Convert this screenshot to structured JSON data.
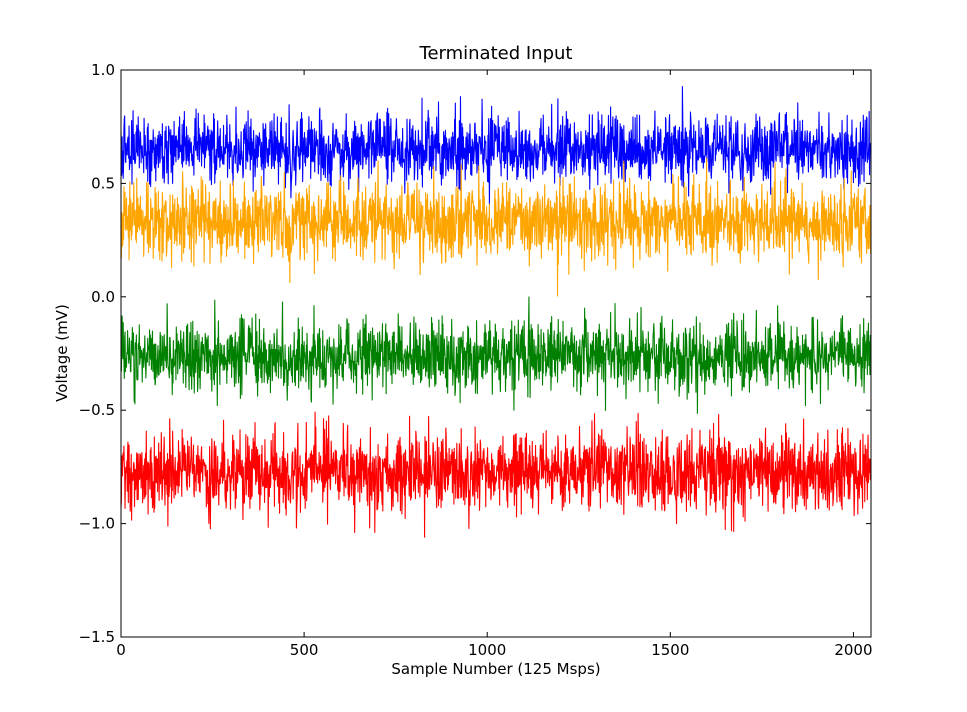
{
  "chart_data": {
    "type": "line",
    "title": "Terminated Input",
    "xlabel": "Sample Number (125 Msps)",
    "ylabel": "Voltage (mV)",
    "xlim": [
      0,
      2048
    ],
    "ylim": [
      -1.5,
      1.0
    ],
    "xticks": [
      0,
      500,
      1000,
      1500,
      2000
    ],
    "yticks": [
      -1.5,
      -1.0,
      -0.5,
      0.0,
      0.5,
      1.0
    ],
    "xtick_labels": [
      "0",
      "500",
      "1000",
      "1500",
      "2000"
    ],
    "ytick_labels": [
      "−1.5",
      "−1.0",
      "−0.5",
      "0.0",
      "0.5",
      "1.0"
    ],
    "grid": false,
    "n_samples": 2048,
    "series": [
      {
        "color": "#0000ff",
        "mean": 0.65,
        "std": 0.075
      },
      {
        "color": "#ffa500",
        "mean": 0.33,
        "std": 0.085
      },
      {
        "color": "#008000",
        "mean": -0.26,
        "std": 0.075
      },
      {
        "color": "#ff0000",
        "mean": -0.77,
        "std": 0.085
      }
    ]
  }
}
